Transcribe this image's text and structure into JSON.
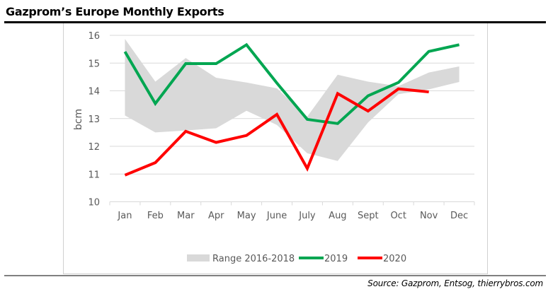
{
  "header": {
    "title": "Gazprom’s Europe Monthly Exports"
  },
  "footer": {
    "source": "Source: Gazprom, Entsog, thierrybros.com"
  },
  "colors": {
    "range": "#d9d9d9",
    "s2019": "#00a651",
    "s2020": "#ff0000",
    "grid": "#d9d9d9",
    "text": "#595959"
  },
  "chart_data": {
    "type": "line",
    "title": "Gazprom’s Europe Monthly Exports",
    "xlabel": "",
    "ylabel": "bcm",
    "ylim": [
      10,
      16
    ],
    "yticks": [
      10,
      11,
      12,
      13,
      14,
      15,
      16
    ],
    "grid": true,
    "legend_position": "bottom",
    "categories": [
      "Jan",
      "Feb",
      "Mar",
      "Apr",
      "May",
      "June",
      "July",
      "Aug",
      "Sept",
      "Oct",
      "Nov",
      "Dec"
    ],
    "range": {
      "name": "Range 2016-2018",
      "upper": [
        15.87,
        14.33,
        15.18,
        14.47,
        14.3,
        14.09,
        13.07,
        14.58,
        14.33,
        14.17,
        14.66,
        14.88
      ],
      "lower": [
        13.11,
        12.5,
        12.57,
        12.65,
        13.28,
        12.77,
        11.75,
        11.47,
        12.86,
        13.88,
        14.05,
        14.32
      ]
    },
    "series": [
      {
        "name": "2019",
        "values": [
          15.41,
          13.54,
          14.98,
          14.98,
          15.66,
          14.28,
          12.97,
          12.82,
          13.82,
          14.3,
          15.42,
          15.66
        ]
      },
      {
        "name": "2020",
        "values": [
          10.96,
          11.41,
          12.54,
          12.14,
          12.39,
          13.15,
          11.2,
          13.9,
          13.27,
          14.07,
          13.96,
          null
        ]
      }
    ]
  }
}
